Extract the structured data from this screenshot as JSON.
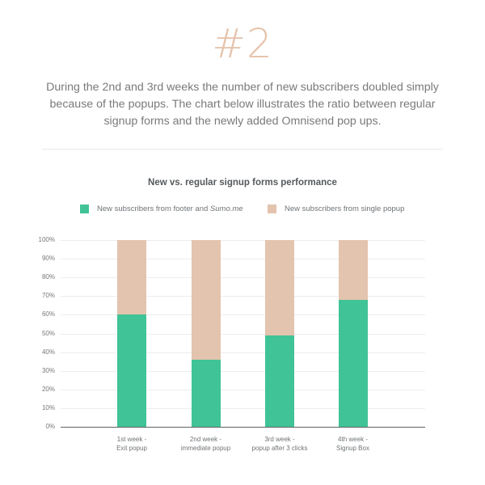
{
  "header": {
    "number": "#2",
    "intro": "During the 2nd and 3rd weeks the number of new subscribers doubled simply because of the popups. The chart below illustrates the ratio between regular signup forms and the newly added Omnisend pop ups."
  },
  "colors": {
    "green": "#40c397",
    "peach": "#e3c4ae",
    "hash": "#e6c4ad"
  },
  "chart_data": {
    "type": "bar",
    "stacked": true,
    "title": "New vs. regular signup forms performance",
    "xlabel": "",
    "ylabel": "",
    "ylim": [
      0,
      100
    ],
    "yticks": [
      "0%",
      "10%",
      "20%",
      "30%",
      "40%",
      "50%",
      "60%",
      "70%",
      "80%",
      "90%",
      "100%"
    ],
    "grid": true,
    "legend_position": "top",
    "categories": [
      [
        "1st week -",
        "Exit popup"
      ],
      [
        "2nd week -",
        "immediate popup"
      ],
      [
        "3rd week -",
        "popup after 3 clicks"
      ],
      [
        "4th week -",
        "Signup Box"
      ]
    ],
    "series": [
      {
        "name": "New subscribers from footer and",
        "name_italic": "Sumo.me",
        "color": "#40c397",
        "values": [
          60,
          36,
          49,
          68
        ]
      },
      {
        "name": "New subscribers from single popup",
        "color": "#e3c4ae",
        "values": [
          40,
          64,
          51,
          32
        ]
      }
    ]
  }
}
